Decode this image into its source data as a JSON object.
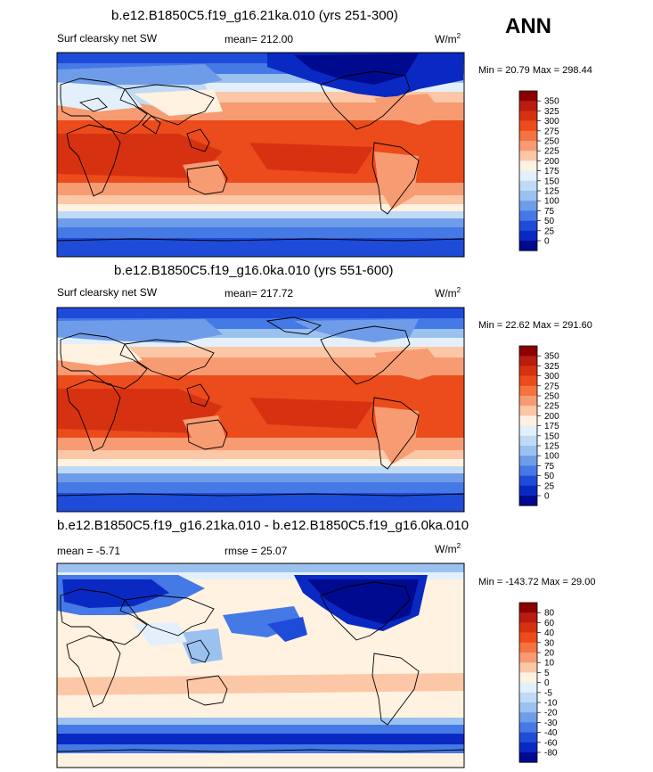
{
  "season_label": "ANN",
  "chart_data": [
    {
      "type": "heatmap",
      "title": "b.e12.B1850C5.f19_g16.21ka.010 (yrs 251-300)",
      "left_label": "Surf clearsky net SW",
      "mean_label": "mean= 212.00",
      "units": "W/m",
      "units_sup": "2",
      "minmax": "Min =  20.79 Max = 298.44",
      "min": 20.79,
      "max": 298.44,
      "mean": 212.0,
      "colorbar_ticks": [
        "350",
        "325",
        "300",
        "275",
        "250",
        "225",
        "200",
        "175",
        "150",
        "125",
        "100",
        "75",
        "50",
        "25",
        "0"
      ],
      "colorbar_colors": [
        "#8b0000",
        "#b81d0e",
        "#d63212",
        "#ec4b1b",
        "#f47340",
        "#f79b72",
        "#fcc7a6",
        "#fff2e1",
        "#e3f0fc",
        "#bfdaf5",
        "#9bc1ef",
        "#6f9ce8",
        "#4479e6",
        "#1f4bd9",
        "#0a29c2",
        "#000a8e"
      ]
    },
    {
      "type": "heatmap",
      "title": "b.e12.B1850C5.f19_g16.0ka.010 (yrs 551-600)",
      "left_label": "Surf clearsky net SW",
      "mean_label": "mean= 217.72",
      "units": "W/m",
      "units_sup": "2",
      "minmax": "Min =  22.62 Max = 291.60",
      "min": 22.62,
      "max": 291.6,
      "mean": 217.72,
      "colorbar_ticks": [
        "350",
        "325",
        "300",
        "275",
        "250",
        "225",
        "200",
        "175",
        "150",
        "125",
        "100",
        "75",
        "50",
        "25",
        "0"
      ],
      "colorbar_colors": [
        "#8b0000",
        "#b81d0e",
        "#d63212",
        "#ec4b1b",
        "#f47340",
        "#f79b72",
        "#fcc7a6",
        "#fff2e1",
        "#e3f0fc",
        "#bfdaf5",
        "#9bc1ef",
        "#6f9ce8",
        "#4479e6",
        "#1f4bd9",
        "#0a29c2",
        "#000a8e"
      ]
    },
    {
      "type": "heatmap",
      "title": "b.e12.B1850C5.f19_g16.21ka.010 - b.e12.B1850C5.f19_g16.0ka.010",
      "left_label": "mean =  -5.71",
      "mean_label": "rmse =  25.07",
      "units": "W/m",
      "units_sup": "2",
      "minmax": "Min = -143.72 Max =  29.00",
      "min": -143.72,
      "max": 29.0,
      "mean": -5.71,
      "rmse": 25.07,
      "colorbar_ticks": [
        "80",
        "60",
        "40",
        "30",
        "20",
        "10",
        "5",
        "0",
        "-5",
        "-10",
        "-20",
        "-30",
        "-40",
        "-60",
        "-80"
      ],
      "colorbar_colors": [
        "#8b0000",
        "#b81d0e",
        "#d63212",
        "#ec4b1b",
        "#f47340",
        "#f79b72",
        "#fcc7a6",
        "#fff2e1",
        "#e3f0fc",
        "#bfdaf5",
        "#9bc1ef",
        "#6f9ce8",
        "#4479e6",
        "#1f4bd9",
        "#0a29c2",
        "#000a8e"
      ]
    }
  ]
}
